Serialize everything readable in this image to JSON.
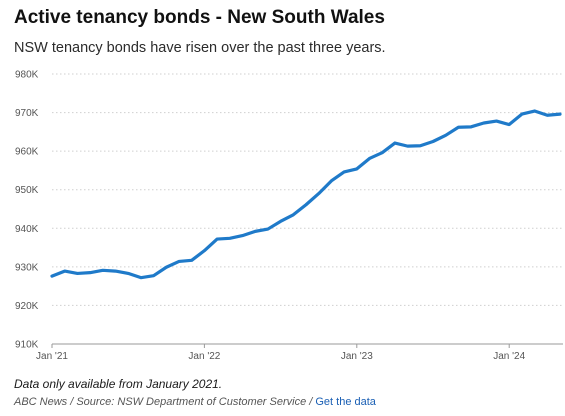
{
  "header": {
    "title": "Active tenancy bonds - New South Wales",
    "subtitle": "NSW tenancy bonds have risen over the past three years."
  },
  "footer": {
    "note": "Data only available from January 2021.",
    "source_prefix": "ABC News / Source: NSW Department of Customer Service / ",
    "link_label": "Get the data"
  },
  "chart_data": {
    "type": "line",
    "title": "Active tenancy bonds - New South Wales",
    "subtitle": "NSW tenancy bonds have risen over the past three years.",
    "xlabel": "",
    "ylabel": "",
    "ylim": [
      910000,
      980000
    ],
    "xlim": [
      "2021-01",
      "2024-05"
    ],
    "grid": "horizontal dotted",
    "line_color": "#1f7ac9",
    "y_ticks": [
      910000,
      920000,
      930000,
      940000,
      950000,
      960000,
      970000,
      980000
    ],
    "y_tick_labels": [
      "910K",
      "920K",
      "930K",
      "940K",
      "950K",
      "960K",
      "970K",
      "980K"
    ],
    "x_ticks": [
      "2021-01",
      "2022-01",
      "2023-01",
      "2024-01"
    ],
    "x_tick_labels": [
      "Jan '21",
      "Jan '22",
      "Jan '23",
      "Jan '24"
    ],
    "series": [
      {
        "x": [
          "2021-01",
          "2021-02",
          "2021-03",
          "2021-04",
          "2021-05",
          "2021-06",
          "2021-07",
          "2021-08",
          "2021-09",
          "2021-10",
          "2021-11",
          "2021-12",
          "2022-01",
          "2022-02",
          "2022-03",
          "2022-04",
          "2022-05",
          "2022-06",
          "2022-07",
          "2022-08",
          "2022-09",
          "2022-10",
          "2022-11",
          "2022-12",
          "2023-01",
          "2023-02",
          "2023-03",
          "2023-04",
          "2023-05",
          "2023-06",
          "2023-07",
          "2023-08",
          "2023-09",
          "2023-10",
          "2023-11",
          "2023-12",
          "2024-01",
          "2024-02",
          "2024-03",
          "2024-04",
          "2024-05"
        ],
        "values": [
          927600,
          928900,
          928300,
          928500,
          929100,
          928900,
          928300,
          927200,
          927700,
          929900,
          931400,
          931700,
          934200,
          937200,
          937400,
          938100,
          939200,
          939800,
          941800,
          943500,
          946100,
          949000,
          952300,
          954600,
          955400,
          958100,
          959600,
          962100,
          961300,
          961400,
          962500,
          964100,
          966200,
          966300,
          967300,
          967800,
          966900,
          969600,
          970400,
          969300,
          969600
        ]
      }
    ]
  }
}
